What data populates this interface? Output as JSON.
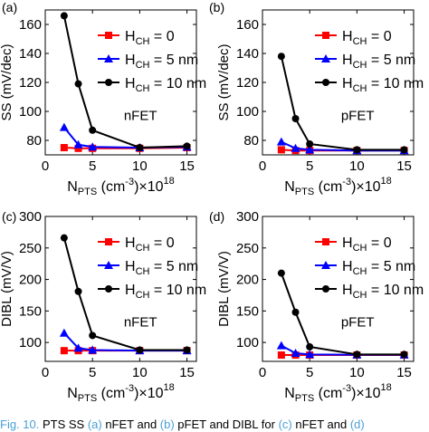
{
  "chart_data": [
    {
      "panel": "(a)",
      "type": "line",
      "annotation": "nFET",
      "ylabel": "SS (mV/dec)",
      "xlabel": "N_PTS (cm^-3)×10^18",
      "xlim": [
        0,
        16
      ],
      "ylim": [
        70,
        170
      ],
      "xticks": [
        0,
        5,
        10,
        15
      ],
      "yticks": [
        80,
        100,
        120,
        140,
        160
      ],
      "grid": false,
      "legend_position": "top-right",
      "x": [
        2,
        3.5,
        5,
        10,
        15
      ],
      "series": [
        {
          "name": "H_CH = 0",
          "color": "#ff0000",
          "marker": "square",
          "values": [
            75,
            74.5,
            74.5,
            74.5,
            75
          ]
        },
        {
          "name": "H_CH = 5 nm",
          "color": "#0000ff",
          "marker": "triangle",
          "values": [
            89,
            77,
            75.5,
            75,
            75.5
          ]
        },
        {
          "name": "H_CH = 10 nm",
          "color": "#000000",
          "marker": "circle",
          "values": [
            166,
            119,
            87,
            75,
            76
          ]
        }
      ]
    },
    {
      "panel": "(b)",
      "type": "line",
      "annotation": "pFET",
      "ylabel": "SS (mV/dec)",
      "xlabel": "N_PTS (cm^-3)×10^18",
      "xlim": [
        0,
        16
      ],
      "ylim": [
        70,
        170
      ],
      "xticks": [
        0,
        5,
        10,
        15
      ],
      "yticks": [
        80,
        100,
        120,
        140,
        160
      ],
      "grid": false,
      "legend_position": "top-right",
      "x": [
        2,
        3.5,
        5,
        10,
        15
      ],
      "series": [
        {
          "name": "H_CH = 0",
          "color": "#ff0000",
          "marker": "square",
          "values": [
            73.5,
            73,
            73,
            73,
            73
          ]
        },
        {
          "name": "H_CH = 5 nm",
          "color": "#0000ff",
          "marker": "triangle",
          "values": [
            79,
            74.5,
            73.5,
            73,
            73
          ]
        },
        {
          "name": "H_CH = 10 nm",
          "color": "#000000",
          "marker": "circle",
          "values": [
            138,
            95,
            77.5,
            73.5,
            73.5
          ]
        }
      ]
    },
    {
      "panel": "(c)",
      "type": "line",
      "annotation": "nFET",
      "ylabel": "DIBL (mV/V)",
      "xlabel": "N_PTS (cm^-3)×10^18",
      "xlim": [
        0,
        16
      ],
      "ylim": [
        70,
        300
      ],
      "xticks": [
        0,
        5,
        10,
        15
      ],
      "yticks": [
        100,
        150,
        200,
        250,
        300
      ],
      "grid": false,
      "legend_position": "top-right",
      "x": [
        2,
        3.5,
        5,
        10,
        15
      ],
      "series": [
        {
          "name": "H_CH = 0",
          "color": "#ff0000",
          "marker": "square",
          "values": [
            87,
            87,
            87,
            87,
            87
          ]
        },
        {
          "name": "H_CH = 5 nm",
          "color": "#0000ff",
          "marker": "triangle",
          "values": [
            115,
            91,
            88,
            87,
            87
          ]
        },
        {
          "name": "H_CH = 10 nm",
          "color": "#000000",
          "marker": "circle",
          "values": [
            266,
            181,
            111,
            88,
            88
          ]
        }
      ]
    },
    {
      "panel": "(d)",
      "type": "line",
      "annotation": "pFET",
      "ylabel": "DIBL (mV/V)",
      "xlabel": "N_PTS (cm^-3)×10^18",
      "xlim": [
        0,
        16
      ],
      "ylim": [
        70,
        300
      ],
      "xticks": [
        0,
        5,
        10,
        15
      ],
      "yticks": [
        100,
        150,
        200,
        250,
        300
      ],
      "grid": false,
      "legend_position": "top-right",
      "x": [
        2,
        3.5,
        5,
        10,
        15
      ],
      "series": [
        {
          "name": "H_CH = 0",
          "color": "#ff0000",
          "marker": "square",
          "values": [
            80,
            80,
            80,
            80,
            80
          ]
        },
        {
          "name": "H_CH = 5 nm",
          "color": "#0000ff",
          "marker": "triangle",
          "values": [
            95,
            83,
            81,
            80.5,
            80.5
          ]
        },
        {
          "name": "H_CH = 10 nm",
          "color": "#000000",
          "marker": "circle",
          "values": [
            210,
            148,
            93,
            81,
            81
          ]
        }
      ]
    }
  ],
  "legend_labels": [
    {
      "main": "H",
      "sub": "CH",
      "rest": " = 0"
    },
    {
      "main": "H",
      "sub": "CH",
      "rest": " = 5 nm"
    },
    {
      "main": "H",
      "sub": "CH",
      "rest": " = 10 nm"
    }
  ],
  "xlabel_parts": {
    "main": "N",
    "sub": "PTS",
    "unit_open": " (cm",
    "unit_exp": "-3",
    "unit_close": ")×10",
    "scale_exp": "18"
  },
  "caption": {
    "lead": "Fig. 10.",
    "text1": "  PTS SS ",
    "ref_a": "(a)",
    "text2": " nFET and ",
    "ref_b": "(b)",
    "text3": " pFET and DIBL for ",
    "ref_c": "(c)",
    "text4": " nFET and ",
    "ref_d": "(d)"
  }
}
